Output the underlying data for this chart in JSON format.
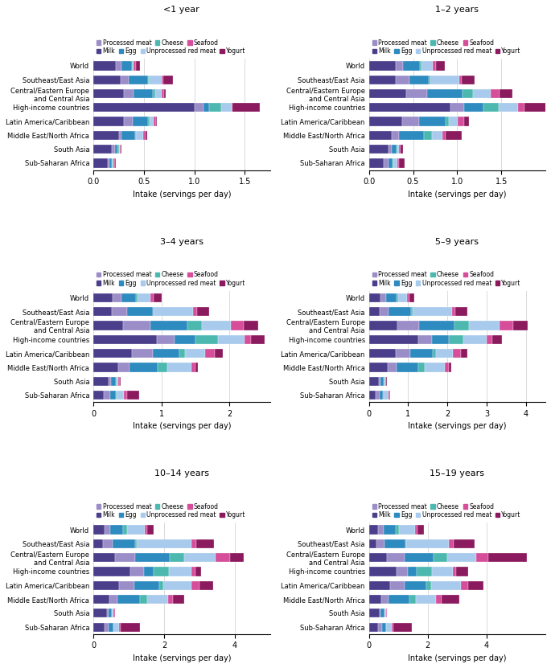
{
  "panels": [
    {
      "title": "<1 year",
      "xlim": [
        0,
        1.75
      ],
      "xticks": [
        0,
        0.5,
        1.0,
        1.5
      ],
      "data": {
        "World": [
          0.22,
          0.06,
          0.1,
          0.01,
          0.01,
          0.02,
          0.04
        ],
        "Southeast/East Asia": [
          0.27,
          0.08,
          0.19,
          0.01,
          0.13,
          0.01,
          0.1
        ],
        "Central/Eastern Europe\nand Central Asia": [
          0.3,
          0.1,
          0.19,
          0.02,
          0.07,
          0.02,
          0.02
        ],
        "High-income countries": [
          1.0,
          0.09,
          0.06,
          0.12,
          0.1,
          0.01,
          0.27
        ],
        "Latin America/Caribbean": [
          0.3,
          0.09,
          0.15,
          0.02,
          0.04,
          0.02,
          0.01
        ],
        "Middle East/North Africa": [
          0.25,
          0.03,
          0.13,
          0.01,
          0.07,
          0.03,
          0.01
        ],
        "South Asia": [
          0.18,
          0.03,
          0.03,
          0.01,
          0.01,
          0.01,
          0.01
        ],
        "Sub-Saharan Africa": [
          0.14,
          0.02,
          0.02,
          0.01,
          0.01,
          0.01,
          0.01
        ]
      }
    },
    {
      "title": "1–2 years",
      "xlim": [
        0,
        2.0
      ],
      "xticks": [
        0,
        0.5,
        1.0,
        1.5
      ],
      "data": {
        "World": [
          0.3,
          0.09,
          0.19,
          0.02,
          0.12,
          0.04,
          0.1
        ],
        "Southeast/East Asia": [
          0.3,
          0.16,
          0.22,
          0.02,
          0.32,
          0.03,
          0.15
        ],
        "Central/Eastern Europe\nand Central Asia": [
          0.42,
          0.24,
          0.4,
          0.12,
          0.2,
          0.1,
          0.15
        ],
        "High-income countries": [
          0.92,
          0.16,
          0.22,
          0.17,
          0.22,
          0.07,
          0.25
        ],
        "Latin America/Caribbean": [
          0.38,
          0.19,
          0.3,
          0.04,
          0.1,
          0.07,
          0.05
        ],
        "Middle East/North Africa": [
          0.26,
          0.08,
          0.28,
          0.09,
          0.12,
          0.04,
          0.18
        ],
        "South Asia": [
          0.22,
          0.04,
          0.05,
          0.01,
          0.02,
          0.02,
          0.03
        ],
        "Sub-Saharan Africa": [
          0.17,
          0.05,
          0.05,
          0.01,
          0.04,
          0.02,
          0.06
        ]
      }
    },
    {
      "title": "3–4 years",
      "xlim": [
        0,
        2.6
      ],
      "xticks": [
        0,
        1,
        2
      ],
      "data": {
        "World": [
          0.28,
          0.13,
          0.22,
          0.02,
          0.19,
          0.05,
          0.12
        ],
        "Southeast/East Asia": [
          0.27,
          0.23,
          0.37,
          0.02,
          0.58,
          0.06,
          0.17
        ],
        "Central/Eastern Europe\nand Central Asia": [
          0.44,
          0.4,
          0.55,
          0.21,
          0.43,
          0.18,
          0.22
        ],
        "High-income countries": [
          0.93,
          0.27,
          0.3,
          0.33,
          0.4,
          0.09,
          0.2
        ],
        "Latin America/Caribbean": [
          0.57,
          0.3,
          0.4,
          0.08,
          0.3,
          0.14,
          0.12
        ],
        "Middle East/North Africa": [
          0.37,
          0.16,
          0.42,
          0.14,
          0.35,
          0.06,
          0.04
        ],
        "South Asia": [
          0.22,
          0.04,
          0.07,
          0.01,
          0.03,
          0.02,
          0.01
        ],
        "Sub-Saharan Africa": [
          0.15,
          0.1,
          0.08,
          0.01,
          0.11,
          0.04,
          0.18
        ]
      }
    },
    {
      "title": "5–9 years",
      "xlim": [
        0,
        4.5
      ],
      "xticks": [
        0,
        1,
        2,
        3,
        4
      ],
      "data": {
        "World": [
          0.3,
          0.14,
          0.27,
          0.03,
          0.24,
          0.06,
          0.12
        ],
        "Southeast/East Asia": [
          0.28,
          0.22,
          0.58,
          0.03,
          1.0,
          0.1,
          0.3
        ],
        "Central/Eastern Europe\nand Central Asia": [
          0.72,
          0.56,
          0.9,
          0.37,
          0.78,
          0.34,
          0.38
        ],
        "High-income countries": [
          1.25,
          0.36,
          0.42,
          0.37,
          0.6,
          0.14,
          0.26
        ],
        "Latin America/Caribbean": [
          0.68,
          0.38,
          0.57,
          0.08,
          0.42,
          0.21,
          0.16
        ],
        "Middle East/North Africa": [
          0.48,
          0.22,
          0.56,
          0.16,
          0.52,
          0.09,
          0.06
        ],
        "South Asia": [
          0.26,
          0.04,
          0.08,
          0.01,
          0.03,
          0.02,
          0.01
        ],
        "Sub-Saharan Africa": [
          0.18,
          0.1,
          0.08,
          0.01,
          0.13,
          0.04,
          0.01
        ]
      }
    },
    {
      "title": "10–14 years",
      "xlim": [
        0,
        5.0
      ],
      "xticks": [
        0,
        2,
        4
      ],
      "data": {
        "World": [
          0.32,
          0.16,
          0.35,
          0.12,
          0.5,
          0.08,
          0.18
        ],
        "Southeast/East Asia": [
          0.28,
          0.26,
          0.65,
          0.04,
          1.55,
          0.14,
          0.5
        ],
        "Central/Eastern Europe\nand Central Asia": [
          0.62,
          0.56,
          0.98,
          0.4,
          0.9,
          0.4,
          0.4
        ],
        "High-income countries": [
          1.05,
          0.38,
          0.28,
          0.42,
          0.65,
          0.1,
          0.18
        ],
        "Latin America/Caribbean": [
          0.72,
          0.44,
          0.7,
          0.12,
          0.8,
          0.22,
          0.4
        ],
        "Middle East/North Africa": [
          0.45,
          0.22,
          0.65,
          0.2,
          0.6,
          0.14,
          0.3
        ],
        "South Asia": [
          0.38,
          0.04,
          0.1,
          0.01,
          0.04,
          0.04,
          0.01
        ],
        "Sub-Saharan Africa": [
          0.32,
          0.12,
          0.12,
          0.01,
          0.15,
          0.05,
          0.55
        ]
      }
    },
    {
      "title": "15–19 years",
      "xlim": [
        0,
        6.0
      ],
      "xticks": [
        0,
        2,
        4
      ],
      "data": {
        "World": [
          0.32,
          0.18,
          0.4,
          0.13,
          0.55,
          0.08,
          0.2
        ],
        "Southeast/East Asia": [
          0.25,
          0.28,
          0.7,
          0.04,
          1.45,
          0.16,
          0.7
        ],
        "Central/Eastern Europe\nand Central Asia": [
          0.6,
          0.6,
          1.0,
          0.45,
          1.0,
          0.42,
          1.3
        ],
        "High-income countries": [
          0.95,
          0.38,
          0.3,
          0.52,
          0.7,
          0.11,
          0.42
        ],
        "Latin America/Caribbean": [
          0.72,
          0.48,
          0.76,
          0.16,
          1.0,
          0.26,
          0.52
        ],
        "Middle East/North Africa": [
          0.42,
          0.24,
          0.72,
          0.22,
          0.68,
          0.18,
          0.6
        ],
        "South Asia": [
          0.36,
          0.04,
          0.12,
          0.01,
          0.04,
          0.04,
          0.01
        ],
        "Sub-Saharan Africa": [
          0.3,
          0.14,
          0.14,
          0.01,
          0.18,
          0.05,
          0.65
        ]
      }
    }
  ],
  "food_items": [
    "Milk",
    "Processed meat",
    "Egg",
    "Cheese",
    "Unprocessed red meat",
    "Seafood",
    "Yogurt"
  ],
  "colors": [
    "#4B3F8C",
    "#9B8DC8",
    "#2E8BC0",
    "#4DB8B0",
    "#A8CAEC",
    "#D64E9A",
    "#8B1A5E"
  ],
  "categories": [
    "World",
    "Southeast/East Asia",
    "Central/Eastern Europe\nand Central Asia",
    "High-income countries",
    "Latin America/Caribbean",
    "Middle East/North Africa",
    "South Asia",
    "Sub-Saharan Africa"
  ],
  "xlabel": "Intake (servings per day)",
  "background_color": "#FFFFFF"
}
